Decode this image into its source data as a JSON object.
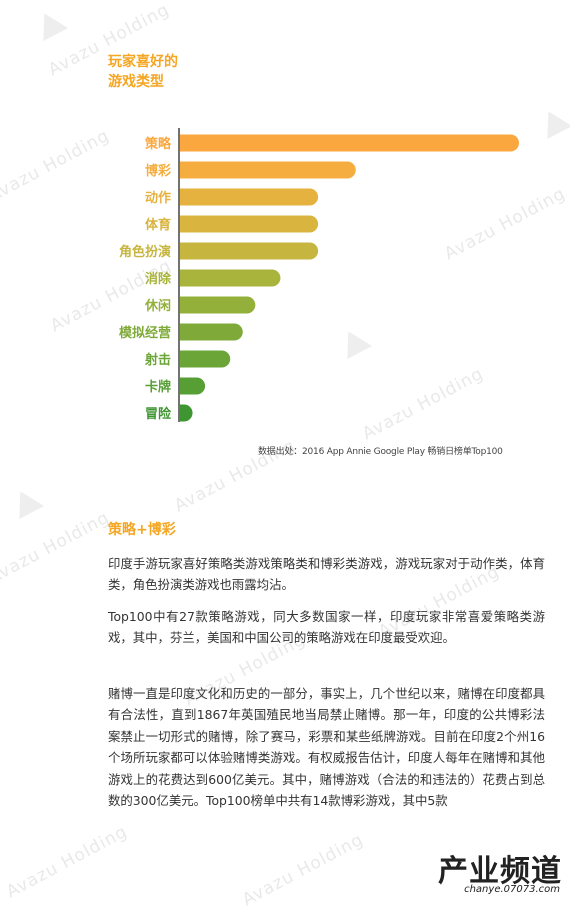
{
  "watermark_text": "Avazu Holding",
  "chart_title_lines": [
    "玩家喜好的",
    "游戏类型"
  ],
  "chart_data": {
    "type": "bar",
    "orientation": "horizontal",
    "title": "玩家喜好的游戏类型",
    "categories": [
      "策略",
      "博彩",
      "动作",
      "体育",
      "角色扮演",
      "消除",
      "休闲",
      "模拟经营",
      "射击",
      "卡牌",
      "冒险"
    ],
    "values": [
      27,
      14,
      11,
      11,
      11,
      8,
      6,
      5,
      4,
      2,
      1
    ],
    "xlabel": "",
    "ylabel": "",
    "grid": false,
    "colors": [
      "#f9a73e",
      "#f5ad40",
      "#e6b23f",
      "#d9b43f",
      "#c6b53e",
      "#a9b43c",
      "#93b03a",
      "#7faa39",
      "#6ba537",
      "#579f35",
      "#3f9531"
    ]
  },
  "source_text": "数据出处：2016 App Annie Google Play 畅销日榜单Top100",
  "section_title": "策略+博彩",
  "paragraphs": [
    "印度手游玩家喜好策略类游戏策略类和博彩类游戏，游戏玩家对于动作类，体育类，角色扮演类游戏也雨露均沾。",
    "Top100中有27款策略游戏，同大多数国家一样，印度玩家非常喜爱策略类游戏，其中，芬兰，美国和中国公司的策略游戏在印度最受欢迎。",
    "赌博一直是印度文化和历史的一部分，事实上，几个世纪以来，赌博在印度都具有合法性，直到1867年英国殖民地当局禁止赌博。那一年，印度的公共博彩法案禁止一切形式的赌博，除了赛马，彩票和某些纸牌游戏。目前在印度2个州16个场所玩家都可以体验赌博类游戏。有权威报告估计，印度人每年在赌博和其他游戏上的花费达到600亿美元。其中，赌博游戏（合法的和违法的）花费占到总数的300亿美元。Top100榜单中共有14款博彩游戏，其中5款"
  ],
  "logo": {
    "main": "产业频道",
    "sub": "chanye.07073.com"
  }
}
